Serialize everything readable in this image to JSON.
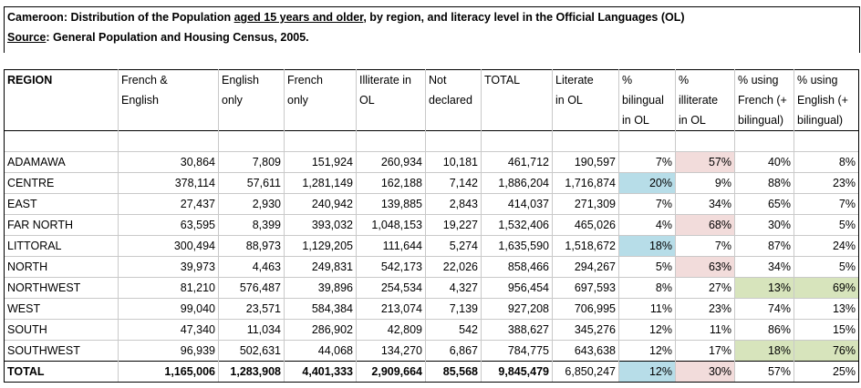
{
  "title": {
    "part1": "Cameroon: Distribution of the Population ",
    "part2_underlined": "aged 15 years and older",
    "part3": ", by region, and literacy level in the Official Languages (OL)"
  },
  "source": {
    "label": "Source",
    "text": ": General Population and Housing Census, 2005."
  },
  "columns": [
    [
      "REGION",
      "",
      ""
    ],
    [
      "French &",
      "English",
      ""
    ],
    [
      "English",
      "only",
      ""
    ],
    [
      "French",
      "only",
      ""
    ],
    [
      "Illiterate in",
      "OL",
      ""
    ],
    [
      "Not",
      "declared",
      ""
    ],
    [
      "TOTAL",
      "",
      ""
    ],
    [
      "Literate",
      "in OL",
      ""
    ],
    [
      "%",
      "bilingual",
      "in OL"
    ],
    [
      "%",
      "illiterate",
      "in OL"
    ],
    [
      "% using",
      "French (+",
      "bilingual)"
    ],
    [
      "% using",
      "English (+",
      "bilingual)"
    ]
  ],
  "rows": [
    {
      "region": "ADAMAWA",
      "values": [
        "30,864",
        "7,809",
        "151,924",
        "260,934",
        "10,181",
        "461,712",
        "190,597",
        "7%",
        "57%",
        "40%",
        "8%"
      ],
      "highlight": {
        "9": "pink"
      }
    },
    {
      "region": "CENTRE",
      "values": [
        "378,114",
        "57,611",
        "1,281,149",
        "162,188",
        "7,142",
        "1,886,204",
        "1,716,874",
        "20%",
        "9%",
        "88%",
        "23%"
      ],
      "highlight": {
        "8": "blue"
      }
    },
    {
      "region": "EAST",
      "values": [
        "27,437",
        "2,930",
        "240,942",
        "139,885",
        "2,843",
        "414,037",
        "271,309",
        "7%",
        "34%",
        "65%",
        "7%"
      ],
      "highlight": {}
    },
    {
      "region": "FAR NORTH",
      "values": [
        "63,595",
        "8,399",
        "393,032",
        "1,048,153",
        "19,227",
        "1,532,406",
        "465,026",
        "4%",
        "68%",
        "30%",
        "5%"
      ],
      "highlight": {
        "9": "pink"
      }
    },
    {
      "region": "LITTORAL",
      "values": [
        "300,494",
        "88,973",
        "1,129,205",
        "111,644",
        "5,274",
        "1,635,590",
        "1,518,672",
        "18%",
        "7%",
        "87%",
        "24%"
      ],
      "highlight": {
        "8": "blue"
      }
    },
    {
      "region": "NORTH",
      "values": [
        "39,973",
        "4,463",
        "249,831",
        "542,173",
        "22,026",
        "858,466",
        "294,267",
        "5%",
        "63%",
        "34%",
        "5%"
      ],
      "highlight": {
        "9": "pink"
      }
    },
    {
      "region": "NORTHWEST",
      "values": [
        "81,210",
        "576,487",
        "39,896",
        "254,534",
        "4,327",
        "956,454",
        "697,593",
        "8%",
        "27%",
        "13%",
        "69%"
      ],
      "highlight": {
        "10": "green",
        "11": "green"
      }
    },
    {
      "region": "WEST",
      "values": [
        "99,040",
        "23,571",
        "584,384",
        "213,074",
        "7,139",
        "927,208",
        "706,995",
        "11%",
        "23%",
        "74%",
        "13%"
      ],
      "highlight": {}
    },
    {
      "region": "SOUTH",
      "values": [
        "47,340",
        "11,034",
        "286,902",
        "42,809",
        "542",
        "388,627",
        "345,276",
        "12%",
        "11%",
        "86%",
        "15%"
      ],
      "highlight": {}
    },
    {
      "region": "SOUTHWEST",
      "values": [
        "96,939",
        "502,631",
        "44,068",
        "134,270",
        "6,867",
        "784,775",
        "643,638",
        "12%",
        "17%",
        "18%",
        "76%"
      ],
      "highlight": {
        "10": "green",
        "11": "green"
      }
    }
  ],
  "total": {
    "region": "TOTAL",
    "values": [
      "1,165,006",
      "1,283,908",
      "4,401,333",
      "2,909,664",
      "85,568",
      "9,845,479",
      "6,850,247",
      "12%",
      "30%",
      "57%",
      "25%"
    ],
    "highlight": {
      "8": "blue",
      "9": "pink"
    }
  },
  "colors": {
    "blue": "#b7dde8",
    "pink": "#f2dcdb",
    "green": "#d7e4bc"
  }
}
